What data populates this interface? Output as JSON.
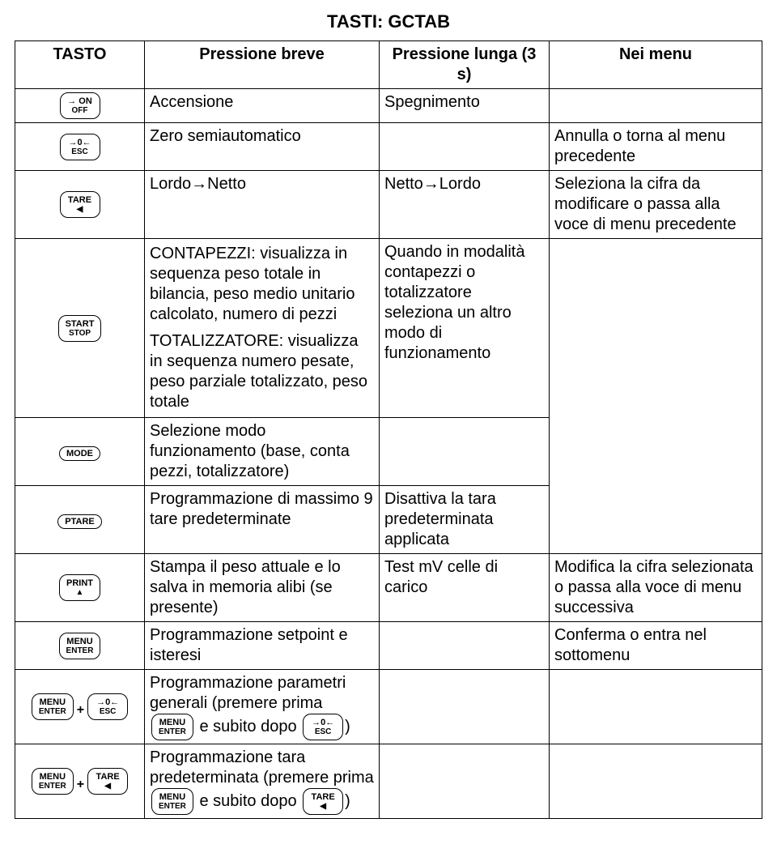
{
  "page_title": "TASTI: GCTAB",
  "headers": {
    "c1": "TASTO",
    "c2": "Pressione breve",
    "c3": "Pressione lunga (3 s)",
    "c4": "Nei menu"
  },
  "keys": {
    "onoff": {
      "top": "ON",
      "bot": "OFF",
      "pre": "→",
      "suf": ""
    },
    "esc": {
      "top": "→0←",
      "bot": "ESC"
    },
    "tare": {
      "top": "TARE",
      "bot": "◀"
    },
    "start": {
      "top": "START",
      "bot": "STOP"
    },
    "mode": {
      "top": "MODE",
      "bot": ""
    },
    "ptare": {
      "top": "PTARE",
      "bot": ""
    },
    "print": {
      "top": "PRINT",
      "bot": "▲"
    },
    "menu": {
      "top": "MENU",
      "bot": "ENTER"
    }
  },
  "rows": [
    {
      "key": "onoff",
      "breve": "Accensione",
      "lunga": "Spegnimento",
      "menu": ""
    },
    {
      "key": "esc",
      "breve": "Zero semiautomatico",
      "lunga": "",
      "menu": "Annulla o torna al menu precedente"
    },
    {
      "key": "tare",
      "breve": "Lordo→Netto",
      "lunga": "Netto→Lordo",
      "menu": "Seleziona la cifra da modificare o passa alla voce di menu precedente"
    },
    {
      "key": "start",
      "breve_p1": "CONTAPEZZI: visualizza in sequenza peso totale in bilancia, peso medio unitario calcolato, numero di pezzi",
      "breve_p2": "TOTALIZZATORE: visualizza in sequenza numero pesate, peso parziale totalizzato, peso totale",
      "lunga": "Quando in modalità contapezzi o totalizzatore seleziona un altro modo di funzionamento",
      "menu": ""
    },
    {
      "key": "mode",
      "breve": "Selezione modo funzionamento (base, conta pezzi, totalizzatore)",
      "lunga": "",
      "menu": ""
    },
    {
      "key": "ptare",
      "breve": "Programmazione di massimo 9 tare predeterminate",
      "lunga": "Disattiva la tara predeterminata applicata",
      "menu": ""
    },
    {
      "key": "print",
      "breve": "Stampa il peso attuale e lo salva in memoria alibi (se presente)",
      "lunga": "Test mV celle di carico",
      "menu": "Modifica la cifra selezionata o passa alla voce di menu successiva"
    },
    {
      "key": "menu",
      "breve": "Programmazione setpoint e isteresi",
      "lunga": "",
      "menu": "Conferma o entra nel sottomenu"
    }
  ],
  "combo1": {
    "breve_line1": "Programmazione parametri generali (premere prima",
    "breve_mid": " e subito dopo ",
    "breve_end": ")"
  },
  "combo2": {
    "breve_line1": "Programmazione tara predeterminata (premere prima",
    "breve_mid": " e subito dopo ",
    "breve_end": ")"
  }
}
